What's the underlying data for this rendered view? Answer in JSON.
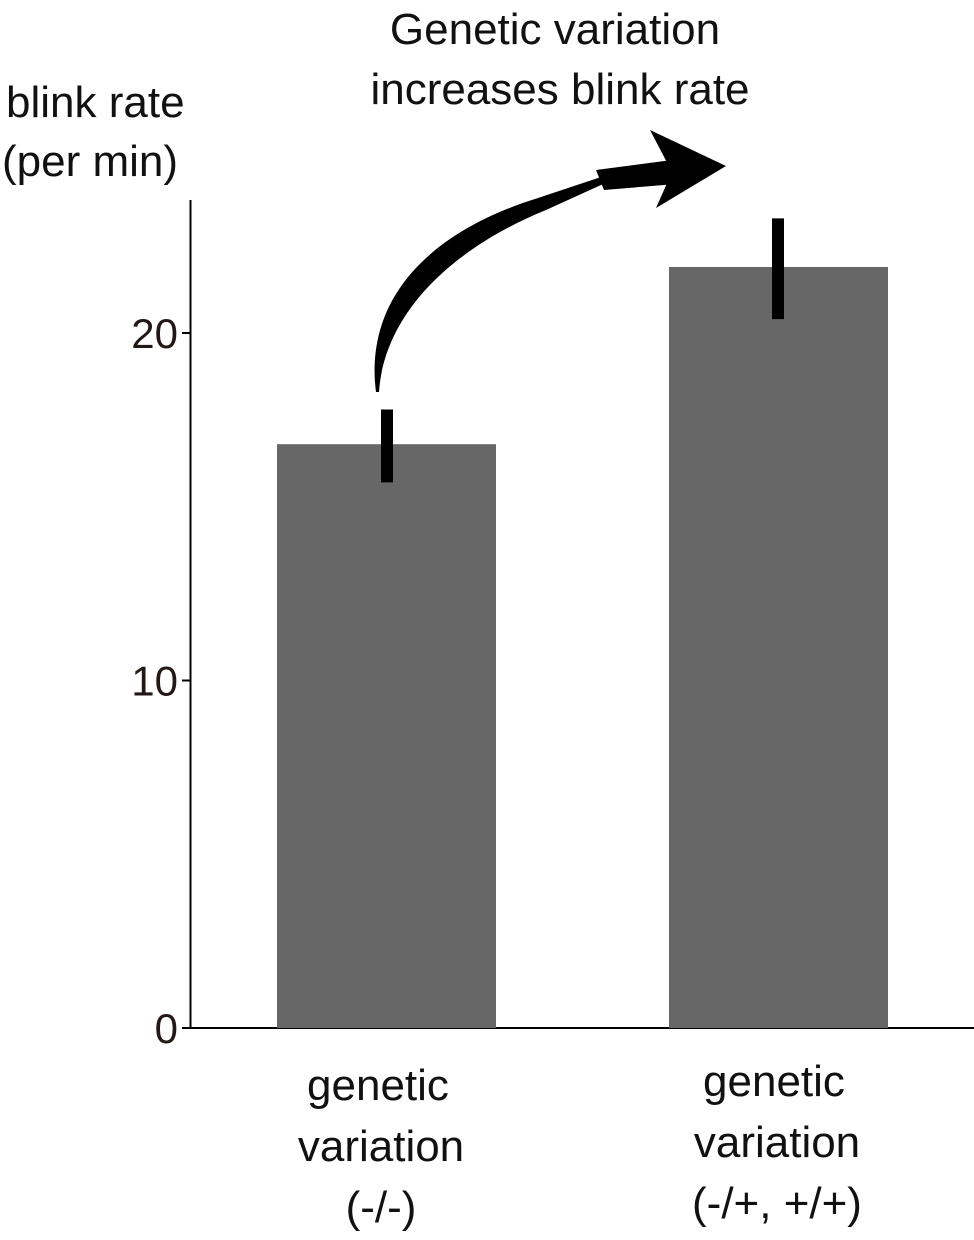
{
  "chart_data": {
    "type": "bar",
    "title": "Genetic variation increases blink rate",
    "title_lines": [
      "Genetic variation",
      "increases blink rate"
    ],
    "ylabel": "blink rate (per min)",
    "ylabel_lines": [
      "blink rate",
      "(per min)"
    ],
    "xlabel": "",
    "ylim": [
      0,
      24
    ],
    "yticks": [
      0,
      10,
      20
    ],
    "grid": false,
    "legend": "none",
    "categories": [
      {
        "label": "genetic variation (-/-)",
        "lines": [
          "genetic",
          "variation",
          "(-/-)"
        ]
      },
      {
        "label": "genetic variation (-/+, +/+)",
        "lines": [
          "genetic",
          "variation",
          "(-/+, +/+)"
        ]
      }
    ],
    "values": [
      16.8,
      21.9
    ],
    "errors": [
      {
        "low": 15.7,
        "high": 17.8
      },
      {
        "low": 20.4,
        "high": 23.3
      }
    ],
    "annotation": "arrow from (-/-) bar to (-/+, +/+) bar",
    "colors": {
      "bar": "#676767",
      "axis": "#000000",
      "error_bar": "#000000",
      "arrow": "#000000"
    }
  }
}
